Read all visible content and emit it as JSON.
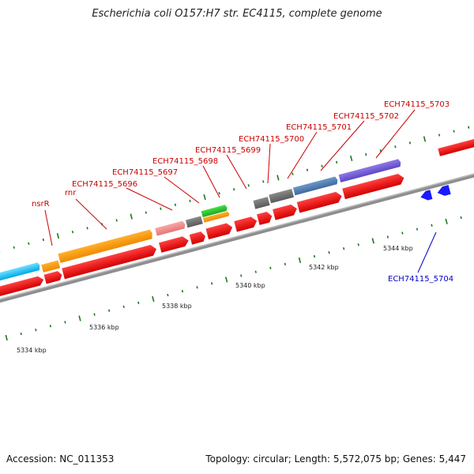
{
  "title": "Escherichia coli O157:H7 str. EC4115, complete genome",
  "footer": {
    "accession": "Accession: NC_011353",
    "summary": "Topology: circular; Length: 5,572,075 bp; Genes: 5,447"
  },
  "colors": {
    "backbone": "#8c8c8c",
    "forward_label": "#cc0000",
    "reverse_label": "#0000cc",
    "cds": "#ee1111",
    "tick": "#1a7a1a"
  },
  "scale_labels": [
    "5334 kbp",
    "5336 kbp",
    "5338 kbp",
    "5340 kbp",
    "5342 kbp",
    "5344 kbp"
  ],
  "gene_labels": {
    "nsrR": "nsrR",
    "rnr": "rnr",
    "g5696": "ECH74115_5696",
    "g5697": "ECH74115_5697",
    "g5698": "ECH74115_5698",
    "g5699": "ECH74115_5699",
    "g5700": "ECH74115_5700",
    "g5701": "ECH74115_5701",
    "g5702": "ECH74115_5702",
    "g5703": "ECH74115_5703",
    "g5704": "ECH74115_5704"
  }
}
